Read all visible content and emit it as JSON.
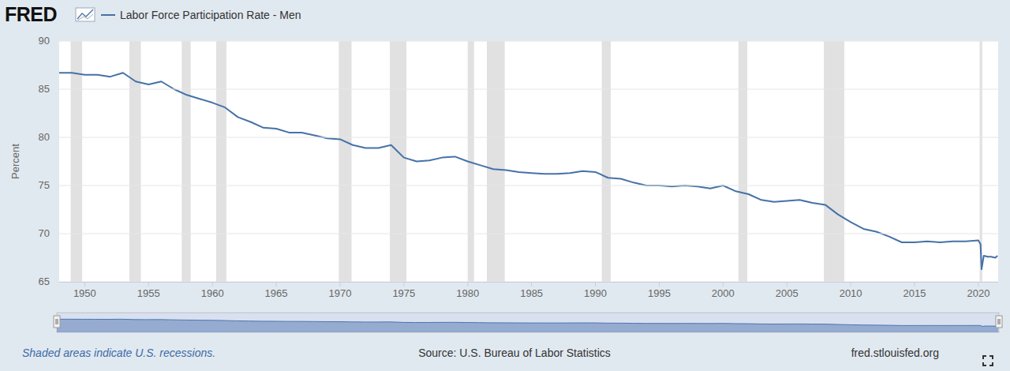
{
  "chart_data": {
    "type": "line",
    "logo": "FRED",
    "y_label": "Percent",
    "footnote": "Shaded areas indicate U.S. recessions.",
    "source": "Source: U.S. Bureau of Labor Statistics",
    "site": "fred.stlouisfed.org",
    "legend": "top-left",
    "grid": true,
    "x": [
      1948,
      1949,
      1950,
      1951,
      1952,
      1953,
      1954,
      1955,
      1956,
      1957,
      1958,
      1959,
      1960,
      1961,
      1962,
      1963,
      1964,
      1965,
      1966,
      1967,
      1968,
      1969,
      1970,
      1971,
      1972,
      1973,
      1974,
      1975,
      1976,
      1977,
      1978,
      1979,
      1980,
      1981,
      1982,
      1983,
      1984,
      1985,
      1986,
      1987,
      1988,
      1989,
      1990,
      1991,
      1992,
      1993,
      1994,
      1995,
      1996,
      1997,
      1998,
      1999,
      2000,
      2001,
      2002,
      2003,
      2004,
      2005,
      2006,
      2007,
      2008,
      2009,
      2010,
      2011,
      2012,
      2013,
      2014,
      2015,
      2016,
      2017,
      2018,
      2019,
      2020.0,
      2020.17,
      2020.25,
      2020.42,
      2020.75,
      2021.0,
      2021.33,
      2021.5
    ],
    "series": [
      {
        "name": "Labor Force Participation Rate - Men",
        "color": "#4572a7",
        "values": [
          86.7,
          86.7,
          86.5,
          86.5,
          86.3,
          86.7,
          85.8,
          85.5,
          85.8,
          85.0,
          84.4,
          84.0,
          83.6,
          83.1,
          82.1,
          81.6,
          81.0,
          80.9,
          80.5,
          80.5,
          80.2,
          79.9,
          79.8,
          79.2,
          78.9,
          78.9,
          79.2,
          77.9,
          77.5,
          77.6,
          77.9,
          78.0,
          77.5,
          77.1,
          76.7,
          76.6,
          76.4,
          76.3,
          76.2,
          76.2,
          76.3,
          76.5,
          76.4,
          75.8,
          75.7,
          75.3,
          75.0,
          75.0,
          74.9,
          75.0,
          74.9,
          74.7,
          75.0,
          74.4,
          74.1,
          73.5,
          73.3,
          73.4,
          73.5,
          73.2,
          73.0,
          72.0,
          71.2,
          70.5,
          70.2,
          69.7,
          69.1,
          69.1,
          69.2,
          69.1,
          69.2,
          69.2,
          69.3,
          68.9,
          66.3,
          67.7,
          67.6,
          67.6,
          67.5,
          67.7
        ]
      }
    ],
    "recessions": [
      {
        "start": 1948.9,
        "end": 1949.8
      },
      {
        "start": 1953.5,
        "end": 1954.4
      },
      {
        "start": 1957.6,
        "end": 1958.3
      },
      {
        "start": 1960.3,
        "end": 1961.1
      },
      {
        "start": 1969.9,
        "end": 1970.9
      },
      {
        "start": 1973.9,
        "end": 1975.2
      },
      {
        "start": 1980.0,
        "end": 1980.5
      },
      {
        "start": 1981.5,
        "end": 1982.9
      },
      {
        "start": 1990.5,
        "end": 1991.2
      },
      {
        "start": 2001.2,
        "end": 2001.9
      },
      {
        "start": 2007.9,
        "end": 2009.5
      },
      {
        "start": 2020.1,
        "end": 2020.3
      }
    ],
    "xlim": [
      1948,
      2021.55
    ],
    "xticks": [
      1950,
      1955,
      1960,
      1965,
      1970,
      1975,
      1980,
      1985,
      1990,
      1995,
      2000,
      2005,
      2010,
      2015,
      2020
    ],
    "ylim": [
      65,
      90
    ],
    "yticks": [
      65,
      70,
      75,
      80,
      85,
      90
    ]
  }
}
